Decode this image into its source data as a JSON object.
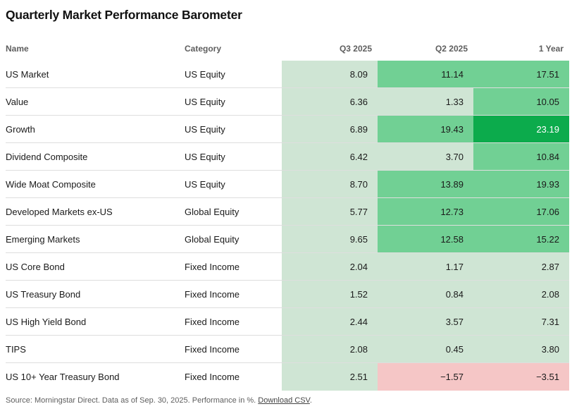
{
  "title": "Quarterly Market Performance Barometer",
  "table_header": {
    "name": "Name",
    "category": "Category",
    "q3": "Q3 2025",
    "q2": "Q2 2025",
    "one_year": "1 Year"
  },
  "chart_data": {
    "type": "heatmap",
    "title": "Quarterly Market Performance Barometer",
    "columns": [
      "Q3 2025",
      "Q2 2025",
      "1 Year"
    ],
    "units": "%",
    "value_decimals": 2,
    "rows": [
      {
        "name": "US Market",
        "category": "US Equity",
        "values": [
          8.09,
          11.14,
          17.51
        ]
      },
      {
        "name": "Value",
        "category": "US Equity",
        "values": [
          6.36,
          1.33,
          10.05
        ]
      },
      {
        "name": "Growth",
        "category": "US Equity",
        "values": [
          6.89,
          19.43,
          23.19
        ]
      },
      {
        "name": "Dividend Composite",
        "category": "US Equity",
        "values": [
          6.42,
          3.7,
          10.84
        ]
      },
      {
        "name": "Wide Moat Composite",
        "category": "US Equity",
        "values": [
          8.7,
          13.89,
          19.93
        ]
      },
      {
        "name": "Developed Markets ex-US",
        "category": "Global Equity",
        "values": [
          5.77,
          12.73,
          17.06
        ]
      },
      {
        "name": "Emerging Markets",
        "category": "Global Equity",
        "values": [
          9.65,
          12.58,
          15.22
        ]
      },
      {
        "name": "US Core Bond",
        "category": "Fixed Income",
        "values": [
          2.04,
          1.17,
          2.87
        ]
      },
      {
        "name": "US Treasury Bond",
        "category": "Fixed Income",
        "values": [
          1.52,
          0.84,
          2.08
        ]
      },
      {
        "name": "US High Yield Bond",
        "category": "Fixed Income",
        "values": [
          2.44,
          3.57,
          7.31
        ]
      },
      {
        "name": "TIPS",
        "category": "Fixed Income",
        "values": [
          2.08,
          0.45,
          3.8
        ]
      },
      {
        "name": "US 10+ Year Treasury Bond",
        "category": "Fixed Income",
        "values": [
          2.51,
          -1.57,
          -3.51
        ]
      }
    ],
    "color_scale": {
      "negative": "#f5c6c6",
      "0_to_10": "#cfe5d4",
      "10_to_20": "#71d094",
      "20_plus": "#0cab4c"
    },
    "legend_position": "none"
  },
  "colors": {
    "negative": "#f5c6c6",
    "low": "#cfe5d4",
    "mid": "#71d094",
    "high": "#0cab4c",
    "high_text": "#ffffff",
    "cell_text": "#1a1a1a"
  },
  "footer": {
    "source_text": "Source: Morningstar Direct. Data as of Sep. 30, 2025. Performance in %. ",
    "link_label": "Download CSV",
    "suffix": "."
  }
}
